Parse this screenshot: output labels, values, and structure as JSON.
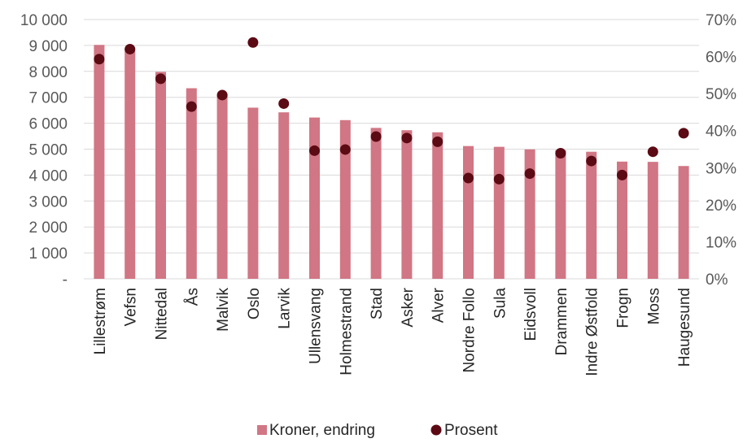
{
  "chart_data": {
    "type": "bar",
    "categories": [
      "Lillestrøm",
      "Vefsn",
      "Nittedal",
      "Ås",
      "Malvik",
      "Oslo",
      "Larvik",
      "Ullensvang",
      "Holmestrand",
      "Stad",
      "Asker",
      "Alver",
      "Nordre Follo",
      "Sula",
      "Eidsvoll",
      "Drammen",
      "Indre Østfold",
      "Frogn",
      "Moss",
      "Haugesund"
    ],
    "series": [
      {
        "name": "Kroner, endring",
        "type": "bar",
        "axis": "left",
        "color": "#d17684",
        "values": [
          9020,
          8900,
          7980,
          7350,
          7130,
          6600,
          6420,
          6220,
          6120,
          5820,
          5730,
          5650,
          5120,
          5090,
          4990,
          4960,
          4900,
          4520,
          4510,
          4350
        ]
      },
      {
        "name": "Prosent",
        "type": "scatter",
        "axis": "right",
        "color": "#5c0a14",
        "values": [
          0.593,
          0.62,
          0.54,
          0.465,
          0.496,
          0.638,
          0.473,
          0.346,
          0.349,
          0.384,
          0.38,
          0.37,
          0.272,
          0.269,
          0.284,
          0.339,
          0.318,
          0.28,
          0.343,
          0.393
        ]
      }
    ],
    "y_left": {
      "min": 0,
      "max": 10000,
      "ticks": [
        "-",
        "1 000",
        "2 000",
        "3 000",
        "4 000",
        "5 000",
        "6 000",
        "7 000",
        "8 000",
        "9 000",
        "10 000"
      ]
    },
    "y_right": {
      "min": 0,
      "max": 0.7,
      "ticks": [
        "0%",
        "10%",
        "20%",
        "30%",
        "40%",
        "50%",
        "60%",
        "70%"
      ]
    },
    "grid": true,
    "legend": "bottom-center"
  }
}
